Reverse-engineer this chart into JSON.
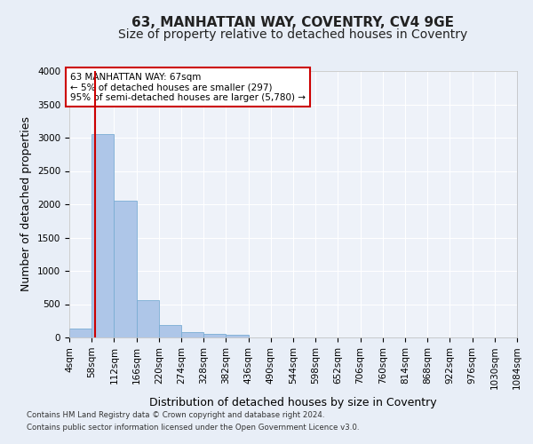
{
  "title_line1": "63, MANHATTAN WAY, COVENTRY, CV4 9GE",
  "title_line2": "Size of property relative to detached houses in Coventry",
  "xlabel": "Distribution of detached houses by size in Coventry",
  "ylabel": "Number of detached properties",
  "footnote1": "Contains HM Land Registry data © Crown copyright and database right 2024.",
  "footnote2": "Contains public sector information licensed under the Open Government Licence v3.0.",
  "bar_edges": [
    4,
    58,
    112,
    166,
    220,
    274,
    328,
    382,
    436,
    490,
    544,
    598,
    652,
    706,
    760,
    814,
    868,
    922,
    976,
    1030,
    1084
  ],
  "bar_heights": [
    130,
    3060,
    2060,
    560,
    190,
    80,
    55,
    40,
    0,
    0,
    0,
    0,
    0,
    0,
    0,
    0,
    0,
    0,
    0,
    0
  ],
  "bar_color": "#aec6e8",
  "bar_edgecolor": "#7aadd4",
  "property_line_x": 67,
  "property_line_color": "#cc0000",
  "annotation_text": "63 MANHATTAN WAY: 67sqm\n← 5% of detached houses are smaller (297)\n95% of semi-detached houses are larger (5,780) →",
  "annotation_box_color": "#cc0000",
  "ylim": [
    0,
    4000
  ],
  "yticks": [
    0,
    500,
    1000,
    1500,
    2000,
    2500,
    3000,
    3500,
    4000
  ],
  "bg_color": "#e8eef7",
  "plot_bg_color": "#eef2f9",
  "grid_color": "#ffffff",
  "title_fontsize": 11,
  "subtitle_fontsize": 10,
  "label_fontsize": 9,
  "tick_fontsize": 7.5
}
